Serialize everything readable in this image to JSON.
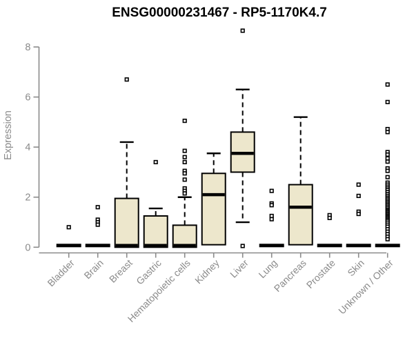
{
  "chart_data": {
    "type": "box",
    "title": "ENSG00000231467 - RP5-1170K4.7",
    "ylabel": "Expression",
    "xlabel": "",
    "ylim": [
      0,
      8.8
    ],
    "yticks": [
      0,
      2,
      4,
      6,
      8
    ],
    "grid": false,
    "legend": "none",
    "colors": {
      "box_fill": "#EDE7CC",
      "box_stroke": "#000000",
      "median": "#000000",
      "outlier_stroke": "#000000",
      "outlier_fill": "#ffffff",
      "axis": "#8A8A8A",
      "title": "#000000",
      "background": "#ffffff"
    },
    "categories": [
      "Bladder",
      "Brain",
      "Breast",
      "Gastric",
      "Hematopoietic cells",
      "Kidney",
      "Liver",
      "Lung",
      "Pancreas",
      "Prostate",
      "Skin",
      "Unknown / Other"
    ],
    "series": [
      {
        "name": "Bladder",
        "q1": 0,
        "median": 0,
        "q3": 0,
        "whisker_low": 0,
        "whisker_high": 0,
        "outliers": [
          0.8
        ]
      },
      {
        "name": "Brain",
        "q1": 0,
        "median": 0,
        "q3": 0,
        "whisker_low": 0,
        "whisker_high": 0,
        "outliers": [
          1.6,
          1.1,
          1.0,
          0.9
        ]
      },
      {
        "name": "Breast",
        "q1": 0,
        "median": 0,
        "q3": 1.95,
        "whisker_low": 0,
        "whisker_high": 4.2,
        "outliers": [
          6.7
        ]
      },
      {
        "name": "Gastric",
        "q1": 0,
        "median": 0,
        "q3": 1.25,
        "whisker_low": 0,
        "whisker_high": 1.55,
        "outliers": [
          3.4
        ]
      },
      {
        "name": "Hematopoietic cells",
        "q1": 0,
        "median": 0,
        "q3": 0.88,
        "whisker_low": 0,
        "whisker_high": 2.0,
        "outliers": [
          5.05,
          3.85,
          3.6,
          3.4,
          3.05,
          2.95,
          2.7,
          2.35,
          2.25,
          2.15
        ]
      },
      {
        "name": "Kidney",
        "q1": 0.1,
        "median": 2.1,
        "q3": 2.95,
        "whisker_low": 0.1,
        "whisker_high": 3.75,
        "outliers": []
      },
      {
        "name": "Liver",
        "q1": 3.0,
        "median": 3.75,
        "q3": 4.6,
        "whisker_low": 1.0,
        "whisker_high": 6.3,
        "outliers": [
          8.65,
          0.05
        ]
      },
      {
        "name": "Lung",
        "q1": 0,
        "median": 0,
        "q3": 0,
        "whisker_low": 0,
        "whisker_high": 0,
        "outliers": [
          2.25,
          1.75,
          1.68,
          1.25,
          1.12
        ]
      },
      {
        "name": "Pancreas",
        "q1": 0.1,
        "median": 1.6,
        "q3": 2.5,
        "whisker_low": 0.1,
        "whisker_high": 5.2,
        "outliers": []
      },
      {
        "name": "Prostate",
        "q1": 0,
        "median": 0,
        "q3": 0,
        "whisker_low": 0,
        "whisker_high": 0,
        "outliers": [
          1.28,
          1.17
        ]
      },
      {
        "name": "Skin",
        "q1": 0,
        "median": 0,
        "q3": 0,
        "whisker_low": 0,
        "whisker_high": 0,
        "outliers": [
          2.5,
          2.05,
          1.42,
          1.33
        ]
      },
      {
        "name": "Unknown / Other",
        "q1": 0,
        "median": 0,
        "q3": 0,
        "whisker_low": 0,
        "whisker_high": 0,
        "outliers": [
          6.5,
          5.8,
          4.72,
          4.6,
          3.8,
          3.7,
          3.55,
          3.42,
          3.15,
          3.05,
          2.8,
          2.58,
          2.5,
          2.42,
          2.35,
          2.28,
          2.2,
          2.12,
          2.05,
          1.98,
          1.92,
          1.86,
          1.8,
          1.74,
          1.68,
          1.62,
          1.56,
          1.5,
          1.45,
          1.4,
          1.35,
          1.3,
          1.25,
          1.2,
          1.15,
          1.1,
          1.05,
          0.98,
          0.9,
          0.82,
          0.72,
          0.62,
          0.52,
          0.42,
          0.32
        ]
      }
    ]
  }
}
